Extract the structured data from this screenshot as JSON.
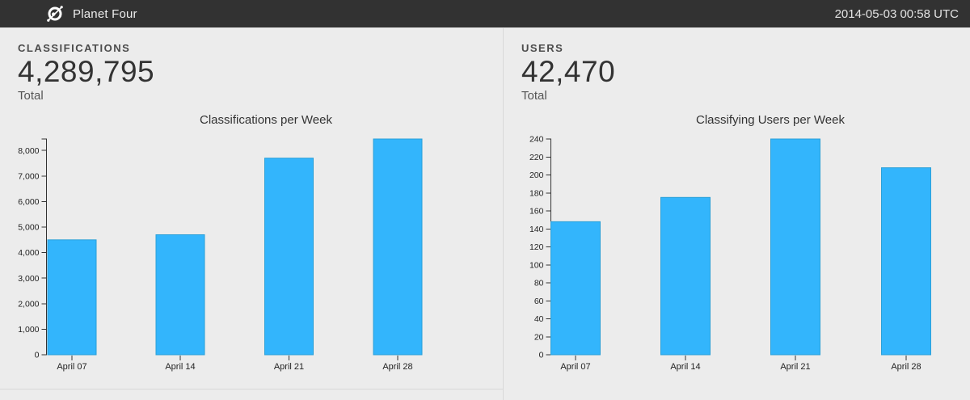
{
  "header": {
    "app_title": "Planet Four",
    "timestamp": "2014-05-03 00:58 UTC",
    "logo_icon": "zooniverse-orbit-logo"
  },
  "colors": {
    "header_bg": "#323232",
    "page_bg": "#ececec",
    "bar_fill": "#33b5fc",
    "bar_stroke": "#2aa0d8",
    "divider": "#d8d8d8",
    "axis": "#333333"
  },
  "panels": [
    {
      "stat_label": "CLASSIFICATIONS",
      "stat_value": "4,289,795",
      "stat_sublabel": "Total"
    },
    {
      "stat_label": "USERS",
      "stat_value": "42,470",
      "stat_sublabel": "Total"
    }
  ],
  "chart_data": [
    {
      "type": "bar",
      "title": "Classifications per Week",
      "categories": [
        "April 07",
        "April 14",
        "April 21",
        "April 28"
      ],
      "values": [
        4500,
        4700,
        7700,
        8450
      ],
      "xlabel": "",
      "ylabel": "",
      "ylim": [
        0,
        8450
      ],
      "ytick_step": 1000,
      "ytick_max": 8000,
      "grid": false,
      "legend": "none",
      "bar_color": "#33b5fc"
    },
    {
      "type": "bar",
      "title": "Classifying Users per Week",
      "categories": [
        "April 07",
        "April 14",
        "April 21",
        "April 28"
      ],
      "values": [
        148,
        175,
        240,
        208
      ],
      "xlabel": "",
      "ylabel": "",
      "ylim": [
        0,
        240
      ],
      "ytick_step": 20,
      "ytick_max": 240,
      "grid": false,
      "legend": "none",
      "bar_color": "#33b5fc"
    }
  ]
}
